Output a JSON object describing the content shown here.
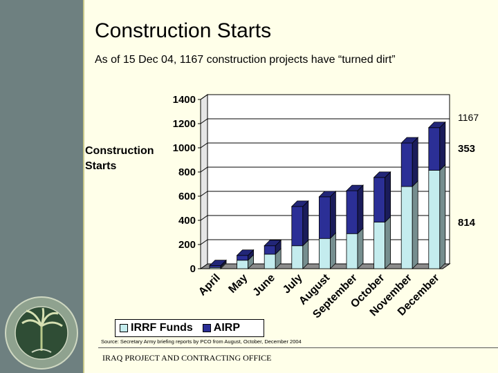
{
  "title": "Construction Starts",
  "subtitle": "As of 15 Dec 04, 1167 construction projects have “turned dirt”",
  "ylabel_lines": [
    "Construction",
    "Starts"
  ],
  "annotations": {
    "total": "1167",
    "airp": "353",
    "irrf": "814"
  },
  "source": "Source: Secretary Army briefing reports by PCO from August, October, December 2004",
  "footer": "IRAQ PROJECT AND CONTRACTING OFFICE",
  "colors": {
    "irrf": "#c4ecee",
    "airp": "#2b2f96",
    "sidebar": "#6e8080",
    "background": "#ffffe9"
  },
  "chart_data": {
    "type": "bar",
    "stacked": true,
    "three_d": true,
    "categories": [
      "April",
      "May",
      "June",
      "July",
      "August",
      "September",
      "October",
      "November",
      "December"
    ],
    "series": [
      {
        "name": "IRRF Funds",
        "values": [
          10,
          70,
          120,
          190,
          250,
          290,
          385,
          680,
          814
        ]
      },
      {
        "name": "AIRP",
        "values": [
          15,
          40,
          70,
          325,
          345,
          355,
          370,
          360,
          353
        ]
      }
    ],
    "y_ticks": [
      "0",
      "200",
      "400",
      "600",
      "800",
      "1000",
      "1200",
      "1400"
    ],
    "ylim": [
      0,
      1400
    ],
    "grid": true,
    "legend": "bottom-left"
  }
}
